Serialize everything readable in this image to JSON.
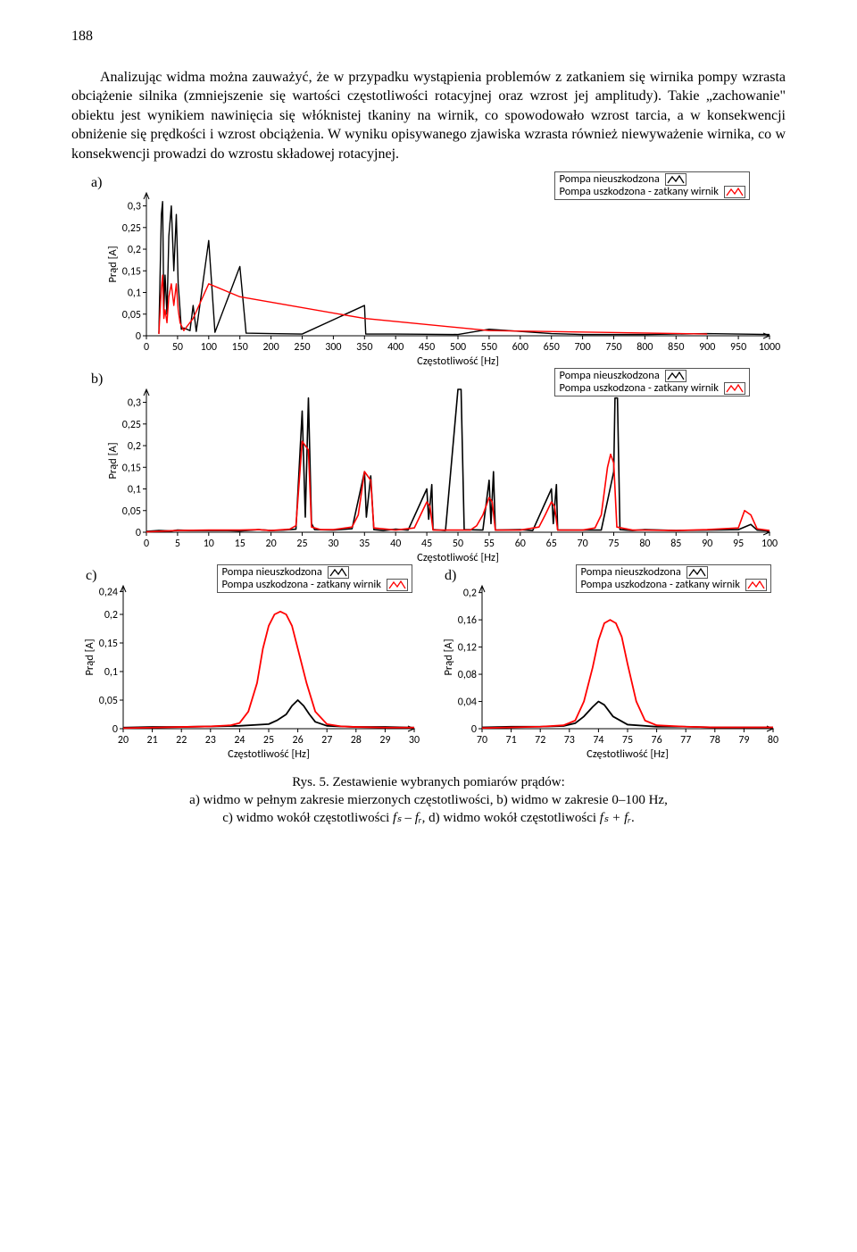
{
  "page_number": "188",
  "paragraph": "Analizując widma można zauważyć, że w przypadku wystąpienia problemów z zatkaniem się wirnika pompy wzrasta obciążenie silnika (zmniejszenie się wartości częstotliwości rotacyjnej oraz wzrost jej amplitudy). Takie „zachowanie\" obiektu jest wynikiem nawinięcia się włóknistej tkaniny na wirnik, co spowodowało wzrost tarcia, a w konsekwencji obniżenie się prędkości i wzrost obciążenia. W wyniku opisywanego zjawiska wzrasta również niewyważenie wirnika, co w konsekwencji prowadzi do wzrostu składowej rotacyjnej.",
  "legend": {
    "series1": "Pompa nieuszkodzona",
    "series2": "Pompa uszkodzona - zatkany wirnik",
    "color1": "#000000",
    "color2": "#ff0000"
  },
  "chart_common": {
    "line_width": 1,
    "line_width_bold": 1.4,
    "background": "#ffffff",
    "axis_color": "#000000",
    "xlabel": "Częstotliwość [Hz]",
    "ylabel": "Prąd [A]",
    "label_fontsize": 12.5,
    "tick_fontsize": 12
  },
  "panel_a": {
    "label": "a)",
    "xlim": [
      0,
      1000
    ],
    "xticks": [
      0,
      50,
      100,
      150,
      200,
      250,
      300,
      350,
      400,
      450,
      500,
      550,
      600,
      650,
      700,
      750,
      800,
      850,
      900,
      950,
      1000
    ],
    "ylim": [
      0,
      0.33
    ],
    "yticks": [
      0,
      0.05,
      0.1,
      0.15,
      0.2,
      0.25,
      0.3
    ],
    "yticklabels": [
      "0",
      "0,05",
      "0,1",
      "0,15",
      "0,2",
      "0,25",
      "0,3"
    ],
    "series": [
      {
        "color": "#000000",
        "w": 1.4,
        "points": [
          [
            20,
            0.005
          ],
          [
            24,
            0.28
          ],
          [
            26,
            0.31
          ],
          [
            28,
            0.06
          ],
          [
            30,
            0.14
          ],
          [
            33,
            0.05
          ],
          [
            36,
            0.23
          ],
          [
            40,
            0.3
          ],
          [
            44,
            0.15
          ],
          [
            48,
            0.28
          ],
          [
            51,
            0.12
          ],
          [
            54,
            0.06
          ],
          [
            56,
            0.015
          ],
          [
            60,
            0.018
          ],
          [
            70,
            0.012
          ],
          [
            75,
            0.07
          ],
          [
            80,
            0.01
          ],
          [
            100,
            0.22
          ],
          [
            110,
            0.008
          ],
          [
            150,
            0.16
          ],
          [
            160,
            0.006
          ],
          [
            200,
            0.005
          ],
          [
            250,
            0.004
          ],
          [
            350,
            0.07
          ],
          [
            352,
            0.004
          ],
          [
            400,
            0.004
          ],
          [
            500,
            0.003
          ],
          [
            550,
            0.015
          ],
          [
            650,
            0.005
          ],
          [
            700,
            0.003
          ],
          [
            800,
            0.003
          ],
          [
            900,
            0.005
          ],
          [
            1000,
            0.003
          ]
        ]
      },
      {
        "color": "#ff0000",
        "w": 1.4,
        "points": [
          [
            20,
            0.004
          ],
          [
            24,
            0.11
          ],
          [
            26,
            0.14
          ],
          [
            28,
            0.04
          ],
          [
            30,
            0.06
          ],
          [
            33,
            0.03
          ],
          [
            36,
            0.09
          ],
          [
            40,
            0.12
          ],
          [
            44,
            0.07
          ],
          [
            48,
            0.12
          ],
          [
            51,
            0.06
          ],
          [
            54,
            0.03
          ],
          [
            60,
            0.012
          ],
          [
            75,
            0.04
          ],
          [
            100,
            0.12
          ],
          [
            150,
            0.09
          ],
          [
            350,
            0.04
          ],
          [
            550,
            0.012
          ],
          [
            900,
            0.004
          ]
        ]
      }
    ]
  },
  "panel_b": {
    "label": "b)",
    "xlim": [
      0,
      100
    ],
    "xticks": [
      0,
      5,
      10,
      15,
      20,
      25,
      30,
      35,
      40,
      45,
      50,
      55,
      60,
      65,
      70,
      75,
      80,
      85,
      90,
      95,
      100
    ],
    "ylim": [
      0,
      0.33
    ],
    "yticks": [
      0,
      0.05,
      0.1,
      0.15,
      0.2,
      0.25,
      0.3
    ],
    "yticklabels": [
      "0",
      "0,05",
      "0,1",
      "0,15",
      "0,2",
      "0,25",
      "0,3"
    ],
    "series": [
      {
        "color": "#000000",
        "w": 1.6,
        "points": [
          [
            0,
            0.002
          ],
          [
            2,
            0.004
          ],
          [
            4,
            0.003
          ],
          [
            5,
            0.005
          ],
          [
            7,
            0.004
          ],
          [
            10,
            0.004
          ],
          [
            13,
            0.004
          ],
          [
            15,
            0.003
          ],
          [
            18,
            0.006
          ],
          [
            20,
            0.004
          ],
          [
            22,
            0.005
          ],
          [
            24,
            0.007
          ],
          [
            25,
            0.28
          ],
          [
            25.5,
            0.035
          ],
          [
            26,
            0.31
          ],
          [
            26.5,
            0.02
          ],
          [
            27,
            0.006
          ],
          [
            30,
            0.005
          ],
          [
            33,
            0.008
          ],
          [
            35,
            0.14
          ],
          [
            35.3,
            0.035
          ],
          [
            36,
            0.13
          ],
          [
            36.5,
            0.006
          ],
          [
            38,
            0.004
          ],
          [
            40,
            0.007
          ],
          [
            42,
            0.005
          ],
          [
            45,
            0.1
          ],
          [
            45.3,
            0.03
          ],
          [
            45.8,
            0.11
          ],
          [
            46,
            0.006
          ],
          [
            48,
            0.004
          ],
          [
            50,
            0.33
          ],
          [
            50.5,
            0.33
          ],
          [
            51,
            0.006
          ],
          [
            54,
            0.005
          ],
          [
            55,
            0.12
          ],
          [
            55.3,
            0.02
          ],
          [
            55.7,
            0.14
          ],
          [
            56,
            0.005
          ],
          [
            60,
            0.006
          ],
          [
            62,
            0.004
          ],
          [
            65,
            0.1
          ],
          [
            65.3,
            0.02
          ],
          [
            65.8,
            0.11
          ],
          [
            66,
            0.005
          ],
          [
            70,
            0.005
          ],
          [
            73,
            0.005
          ],
          [
            75,
            0.14
          ],
          [
            75.2,
            0.31
          ],
          [
            75.6,
            0.31
          ],
          [
            76,
            0.006
          ],
          [
            78,
            0.004
          ],
          [
            80,
            0.006
          ],
          [
            85,
            0.004
          ],
          [
            90,
            0.005
          ],
          [
            95,
            0.006
          ],
          [
            97,
            0.018
          ],
          [
            98,
            0.005
          ],
          [
            100,
            0.003
          ]
        ]
      },
      {
        "color": "#ff0000",
        "w": 1.6,
        "points": [
          [
            0,
            0.001
          ],
          [
            5,
            0.004
          ],
          [
            10,
            0.005
          ],
          [
            15,
            0.005
          ],
          [
            18,
            0.006
          ],
          [
            20,
            0.004
          ],
          [
            23,
            0.007
          ],
          [
            24,
            0.015
          ],
          [
            25,
            0.21
          ],
          [
            25.5,
            0.2
          ],
          [
            26,
            0.19
          ],
          [
            26.5,
            0.012
          ],
          [
            28,
            0.006
          ],
          [
            30,
            0.006
          ],
          [
            33,
            0.012
          ],
          [
            34,
            0.04
          ],
          [
            35,
            0.14
          ],
          [
            35.5,
            0.13
          ],
          [
            36,
            0.12
          ],
          [
            36.5,
            0.01
          ],
          [
            40,
            0.005
          ],
          [
            43,
            0.01
          ],
          [
            44,
            0.04
          ],
          [
            45,
            0.07
          ],
          [
            45.5,
            0.06
          ],
          [
            46,
            0.005
          ],
          [
            50,
            0.005
          ],
          [
            52,
            0.005
          ],
          [
            53,
            0.015
          ],
          [
            54,
            0.04
          ],
          [
            55,
            0.08
          ],
          [
            55.5,
            0.07
          ],
          [
            56,
            0.005
          ],
          [
            60,
            0.005
          ],
          [
            63,
            0.012
          ],
          [
            64,
            0.04
          ],
          [
            65,
            0.07
          ],
          [
            65.5,
            0.06
          ],
          [
            66,
            0.005
          ],
          [
            70,
            0.005
          ],
          [
            72,
            0.01
          ],
          [
            73,
            0.04
          ],
          [
            74,
            0.15
          ],
          [
            74.5,
            0.18
          ],
          [
            75,
            0.16
          ],
          [
            75.5,
            0.012
          ],
          [
            78,
            0.005
          ],
          [
            80,
            0.005
          ],
          [
            85,
            0.004
          ],
          [
            90,
            0.006
          ],
          [
            95,
            0.01
          ],
          [
            96,
            0.05
          ],
          [
            97,
            0.04
          ],
          [
            98,
            0.008
          ],
          [
            100,
            0.004
          ]
        ]
      }
    ]
  },
  "panel_c": {
    "label": "c)",
    "xlim": [
      20,
      30
    ],
    "xticks": [
      20,
      21,
      22,
      23,
      24,
      25,
      26,
      27,
      28,
      29,
      30
    ],
    "ylim": [
      0,
      0.25
    ],
    "yticks": [
      0,
      0.05,
      0.1,
      0.15,
      0.2,
      0.24
    ],
    "yticklabels": [
      "0",
      "0,05",
      "0,1",
      "0,15",
      "0,2",
      "0,24"
    ],
    "series": [
      {
        "color": "#000000",
        "w": 1.8,
        "points": [
          [
            20,
            0.002
          ],
          [
            21,
            0.003
          ],
          [
            22,
            0.003
          ],
          [
            23,
            0.004
          ],
          [
            24,
            0.005
          ],
          [
            25,
            0.008
          ],
          [
            25.3,
            0.015
          ],
          [
            25.6,
            0.025
          ],
          [
            25.8,
            0.04
          ],
          [
            26,
            0.05
          ],
          [
            26.2,
            0.04
          ],
          [
            26.4,
            0.025
          ],
          [
            26.6,
            0.012
          ],
          [
            27,
            0.005
          ],
          [
            28,
            0.003
          ],
          [
            29,
            0.003
          ],
          [
            30,
            0.002
          ]
        ]
      },
      {
        "color": "#ff0000",
        "w": 1.8,
        "points": [
          [
            20,
            0.001
          ],
          [
            21,
            0.002
          ],
          [
            22,
            0.003
          ],
          [
            23,
            0.004
          ],
          [
            23.7,
            0.006
          ],
          [
            24,
            0.01
          ],
          [
            24.3,
            0.03
          ],
          [
            24.6,
            0.08
          ],
          [
            24.8,
            0.14
          ],
          [
            25,
            0.18
          ],
          [
            25.2,
            0.2
          ],
          [
            25.4,
            0.205
          ],
          [
            25.6,
            0.2
          ],
          [
            25.8,
            0.18
          ],
          [
            26,
            0.14
          ],
          [
            26.3,
            0.08
          ],
          [
            26.6,
            0.03
          ],
          [
            27,
            0.008
          ],
          [
            27.5,
            0.004
          ],
          [
            28,
            0.003
          ],
          [
            29,
            0.002
          ],
          [
            30,
            0.002
          ]
        ]
      }
    ]
  },
  "panel_d": {
    "label": "d)",
    "xlim": [
      70,
      80
    ],
    "xticks": [
      70,
      71,
      72,
      73,
      74,
      75,
      76,
      77,
      78,
      79,
      80
    ],
    "ylim": [
      0,
      0.21
    ],
    "yticks": [
      0,
      0.04,
      0.08,
      0.12,
      0.16,
      0.2
    ],
    "yticklabels": [
      "0",
      "0,04",
      "0,08",
      "0,12",
      "0,16",
      "0,2"
    ],
    "series": [
      {
        "color": "#000000",
        "w": 1.8,
        "points": [
          [
            70,
            0.002
          ],
          [
            71,
            0.003
          ],
          [
            72,
            0.003
          ],
          [
            72.8,
            0.004
          ],
          [
            73.2,
            0.008
          ],
          [
            73.5,
            0.018
          ],
          [
            73.8,
            0.032
          ],
          [
            74,
            0.04
          ],
          [
            74.2,
            0.035
          ],
          [
            74.5,
            0.018
          ],
          [
            75,
            0.006
          ],
          [
            76,
            0.003
          ],
          [
            77,
            0.003
          ],
          [
            78,
            0.002
          ],
          [
            79,
            0.002
          ],
          [
            80,
            0.002
          ]
        ]
      },
      {
        "color": "#ff0000",
        "w": 1.8,
        "points": [
          [
            70,
            0.001
          ],
          [
            71,
            0.002
          ],
          [
            72,
            0.003
          ],
          [
            72.8,
            0.005
          ],
          [
            73.2,
            0.012
          ],
          [
            73.5,
            0.04
          ],
          [
            73.8,
            0.09
          ],
          [
            74,
            0.13
          ],
          [
            74.2,
            0.155
          ],
          [
            74.4,
            0.16
          ],
          [
            74.6,
            0.155
          ],
          [
            74.8,
            0.135
          ],
          [
            75,
            0.095
          ],
          [
            75.3,
            0.04
          ],
          [
            75.6,
            0.012
          ],
          [
            76,
            0.005
          ],
          [
            77,
            0.003
          ],
          [
            78,
            0.002
          ],
          [
            79,
            0.002
          ],
          [
            80,
            0.002
          ]
        ]
      }
    ]
  },
  "caption": {
    "line1": "Rys. 5. Zestawienie wybranych pomiarów prądów:",
    "line2": "a) widmo w pełnym zakresie mierzonych częstotliwości, b) widmo w zakresie 0–100 Hz,",
    "line3_prefix": "c) widmo wokół częstotliwości ",
    "line3_mid": ", d) widmo wokół częstotliwości ",
    "line3_end": ".",
    "fs_minus_fr": "fₛ – fᵣ",
    "fs_plus_fr": "fₛ + fᵣ"
  }
}
